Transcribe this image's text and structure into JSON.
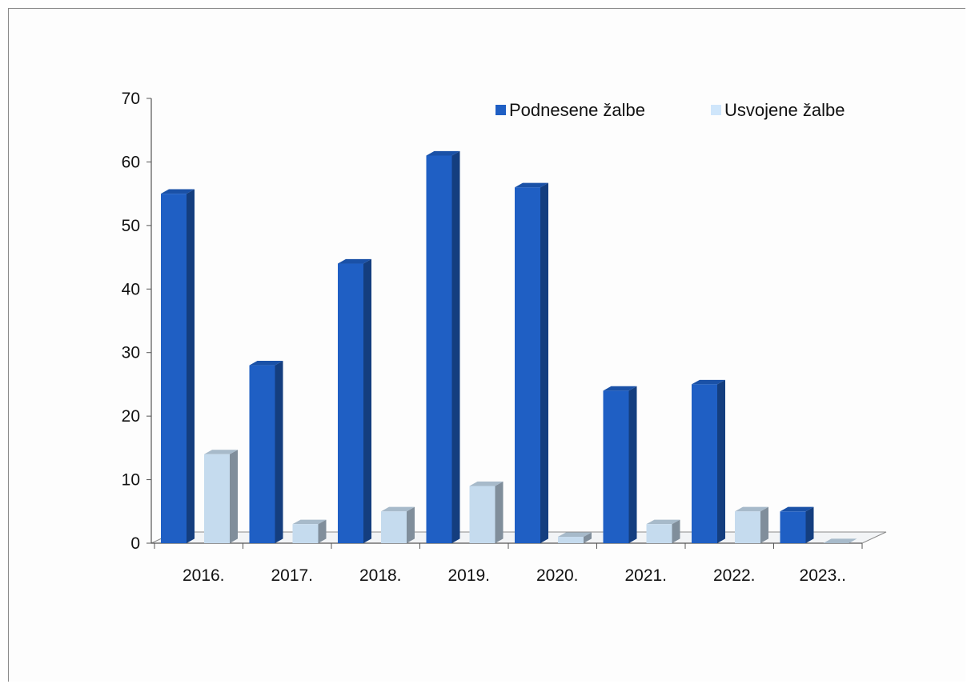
{
  "chart_data": {
    "type": "bar",
    "categories": [
      "2016.",
      "2017.",
      "2018.",
      "2019.",
      "2020.",
      "2021.",
      "2022.",
      "2023.."
    ],
    "series": [
      {
        "name": "Podnesene žalbe",
        "values": [
          55,
          28,
          44,
          61,
          56,
          24,
          25,
          5
        ],
        "color": "#1f5fc4"
      },
      {
        "name": "Usvojene žalbe",
        "values": [
          14,
          3,
          5,
          9,
          1,
          3,
          5,
          0
        ],
        "color": "#cfe6fb"
      }
    ],
    "yticks": [
      0,
      10,
      20,
      30,
      40,
      50,
      60,
      70
    ],
    "ylim": [
      0,
      70
    ],
    "legend_position": "top-right",
    "grid": false,
    "style": "3d-clustered-column"
  }
}
